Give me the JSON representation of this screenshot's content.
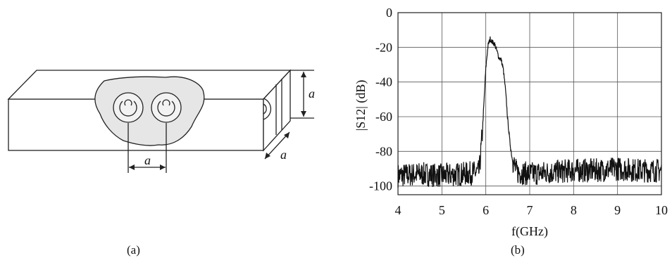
{
  "panel_a": {
    "caption": "(a)",
    "dim_labels": {
      "height": "a",
      "width": "a",
      "spacing": "a"
    }
  },
  "chart_data": {
    "type": "line",
    "caption": "(b)",
    "xlabel": "f(GHz)",
    "ylabel": "|S12| (dB)",
    "xlim": [
      4,
      10
    ],
    "ylim": [
      -105,
      0
    ],
    "xticks": [
      "4",
      "5",
      "6",
      "7",
      "8",
      "9",
      "10"
    ],
    "yticks": [
      "0",
      "-20",
      "-40",
      "-60",
      "-80",
      "-100"
    ],
    "grid": true,
    "series": [
      {
        "x": [
          4.0,
          4.5,
          5.0,
          5.5,
          5.85,
          5.92,
          6.0,
          6.05,
          6.1,
          6.15,
          6.2,
          6.25,
          6.3,
          6.35,
          6.4,
          6.45,
          6.5,
          6.55,
          6.6,
          6.7,
          7.0,
          7.5,
          8.0,
          8.5,
          9.0,
          9.5,
          10.0
        ],
        "y": [
          -94,
          -93,
          -94,
          -93,
          -92,
          -70,
          -32,
          -19,
          -15,
          -17,
          -18,
          -22,
          -26,
          -27,
          -33,
          -45,
          -62,
          -75,
          -84,
          -92,
          -93,
          -92,
          -91,
          -91,
          -90,
          -91,
          -91
        ]
      }
    ]
  }
}
